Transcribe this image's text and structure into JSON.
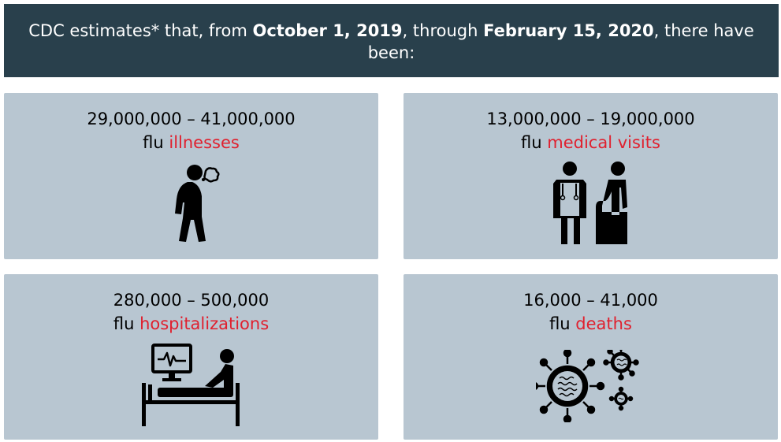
{
  "banner": {
    "prefix": "CDC estimates* that, from ",
    "start_date": "October 1, 2019",
    "middle": ", through ",
    "end_date": "February 15, 2020",
    "suffix": ", there have been:"
  },
  "cards": [
    {
      "range": "29,000,000 – 41,000,000",
      "prefix": "flu ",
      "highlight": "illnesses",
      "icon": "sick-person-coughing-icon"
    },
    {
      "range": "13,000,000 – 19,000,000",
      "prefix": "flu ",
      "highlight": "medical visits",
      "icon": "doctor-and-patient-icon"
    },
    {
      "range": "280,000 – 500,000",
      "prefix": "flu ",
      "highlight": "hospitalizations",
      "icon": "hospital-bed-monitor-icon"
    },
    {
      "range": "16,000 – 41,000",
      "prefix": "flu ",
      "highlight": "deaths",
      "icon": "virus-particles-icon"
    }
  ],
  "colors": {
    "banner_bg": "#29404c",
    "card_bg": "#b8c6d1",
    "highlight": "#e0202e"
  }
}
